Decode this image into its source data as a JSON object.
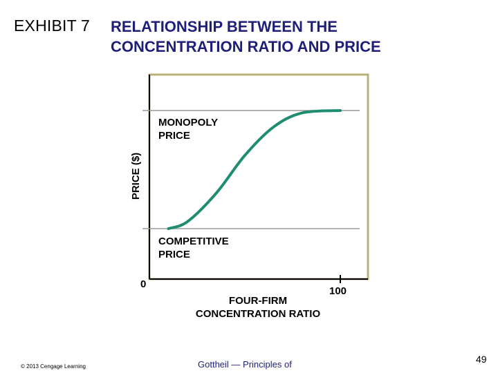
{
  "slide": {
    "exhibit_label": "EXHIBIT 7",
    "title_lines": [
      "RELATIONSHIP BETWEEN THE",
      "CONCENTRATION RATIO AND PRICE"
    ],
    "copyright": "© 2013 Cengage Learning",
    "footer_text": "Gottheil — Principles of",
    "page_number": "49"
  },
  "chart_data": {
    "type": "line",
    "ylabel": "PRICE ($)",
    "xlabel_lines": [
      "FOUR-FIRM",
      "CONCENTRATION RATIO"
    ],
    "origin_label": "0",
    "x_end_label": "100",
    "xlim": [
      0,
      100
    ],
    "reference_lines": [
      {
        "label_lines": [
          "MONOPOLY",
          "PRICE"
        ],
        "level": "high"
      },
      {
        "label_lines": [
          "COMPETITIVE",
          "PRICE"
        ],
        "level": "low"
      }
    ],
    "series": [
      {
        "x": [
          10,
          20,
          35,
          50,
          65,
          80,
          100
        ],
        "y": [
          0,
          0.06,
          0.3,
          0.62,
          0.86,
          0.98,
          1.0
        ]
      }
    ],
    "colors": {
      "curve": "#1e8c70",
      "frame": "#b8b07a",
      "axis": "#000000",
      "reference": "#9a9a9a"
    }
  }
}
